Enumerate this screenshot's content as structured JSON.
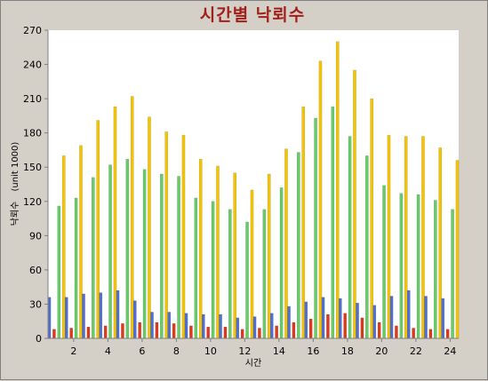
{
  "chart_data": {
    "type": "bar",
    "title": "시간별 낙뢰수",
    "xlabel": "시간",
    "ylabel": "낙뢰수",
    "ylabel_unit": "(unit 1000)",
    "ylim": [
      0,
      270
    ],
    "yticks": [
      0,
      30,
      60,
      90,
      120,
      150,
      180,
      210,
      240,
      270
    ],
    "xticks": [
      2,
      4,
      6,
      8,
      10,
      12,
      14,
      16,
      18,
      20,
      22,
      24
    ],
    "categories": [
      1,
      2,
      3,
      4,
      5,
      6,
      7,
      8,
      9,
      10,
      11,
      12,
      13,
      14,
      15,
      16,
      17,
      18,
      19,
      20,
      21,
      22,
      23,
      24
    ],
    "grid": false,
    "legend": "none",
    "series": [
      {
        "color": "#4f6fd6",
        "values": [
          36,
          36,
          39,
          40,
          42,
          33,
          23,
          23,
          22,
          21,
          21,
          18,
          19,
          22,
          28,
          32,
          36,
          35,
          31,
          29,
          37,
          42,
          37,
          35
        ]
      },
      {
        "color": "#e03818",
        "values": [
          8,
          9,
          10,
          11,
          13,
          14,
          14,
          13,
          11,
          10,
          10,
          8,
          9,
          11,
          14,
          17,
          21,
          22,
          18,
          14,
          11,
          9,
          8,
          8
        ]
      },
      {
        "color": "#66cc66",
        "values": [
          116,
          123,
          141,
          152,
          157,
          148,
          144,
          142,
          123,
          120,
          113,
          102,
          113,
          132,
          163,
          193,
          203,
          177,
          160,
          134,
          127,
          126,
          121,
          113
        ]
      },
      {
        "color": "#f5c400",
        "values": [
          160,
          169,
          191,
          203,
          212,
          194,
          181,
          178,
          157,
          151,
          145,
          130,
          144,
          166,
          203,
          243,
          260,
          235,
          210,
          178,
          177,
          177,
          167,
          156
        ]
      }
    ]
  }
}
